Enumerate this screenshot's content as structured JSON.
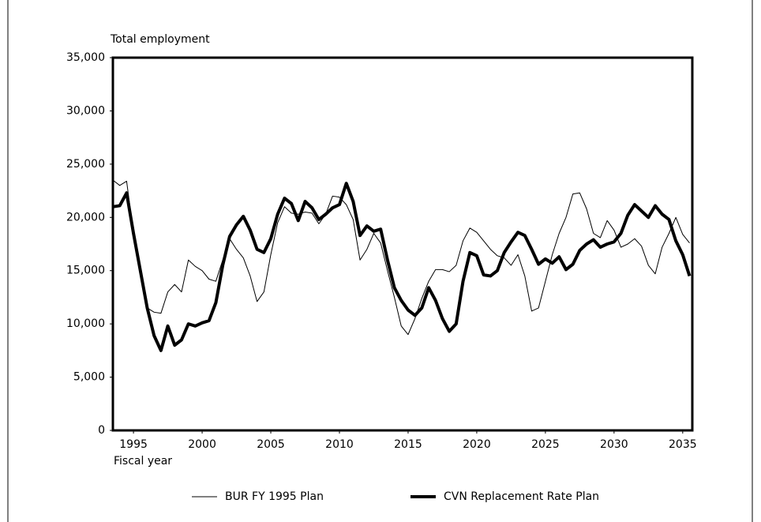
{
  "chart_data": {
    "type": "line",
    "y_label": "Total employment",
    "x_label": "Fiscal year",
    "x": [
      1993.5,
      1994,
      1994.5,
      1995,
      1995.5,
      1996,
      1996.5,
      1997,
      1997.5,
      1998,
      1998.5,
      1999,
      1999.5,
      2000,
      2000.5,
      2001,
      2001.5,
      2002,
      2002.5,
      2003,
      2003.5,
      2004,
      2004.5,
      2005,
      2005.5,
      2006,
      2006.5,
      2007,
      2007.5,
      2008,
      2008.5,
      2009,
      2009.5,
      2010,
      2010.5,
      2011,
      2011.5,
      2012,
      2012.5,
      2013,
      2013.5,
      2014,
      2014.5,
      2015,
      2015.5,
      2016,
      2016.5,
      2017,
      2017.5,
      2018,
      2018.5,
      2019,
      2019.5,
      2020,
      2020.5,
      2021,
      2021.5,
      2022,
      2022.5,
      2023,
      2023.5,
      2024,
      2024.5,
      2025,
      2025.5,
      2026,
      2026.5,
      2027,
      2027.5,
      2028,
      2028.5,
      2029,
      2029.5,
      2030,
      2030.5,
      2031,
      2031.5,
      2032,
      2032.5,
      2033,
      2033.5,
      2034,
      2034.5,
      2035,
      2035.5
    ],
    "series": [
      {
        "name": "BUR FY 1995 Plan",
        "color": "#000000",
        "linewidth": 1,
        "values": [
          23500,
          23000,
          23400,
          18500,
          15500,
          11500,
          11100,
          11000,
          13000,
          13700,
          13000,
          16000,
          15400,
          15000,
          14200,
          14000,
          16000,
          18000,
          17000,
          16200,
          14500,
          12100,
          13000,
          16500,
          19500,
          21000,
          20400,
          20300,
          20500,
          20400,
          19400,
          20300,
          22000,
          21900,
          21200,
          19800,
          16000,
          17000,
          18500,
          17600,
          15000,
          12500,
          9800,
          9000,
          10500,
          12400,
          14000,
          15100,
          15100,
          14900,
          15500,
          17800,
          19000,
          18600,
          17800,
          17000,
          16400,
          16200,
          15500,
          16500,
          14500,
          11200,
          11500,
          14000,
          16500,
          18500,
          20000,
          22200,
          22300,
          20800,
          18500,
          18100,
          19700,
          18800,
          17200,
          17500,
          18000,
          17300,
          15500,
          14700,
          17200,
          18500,
          20000,
          18400,
          17600
        ]
      },
      {
        "name": "CVN Replacement Rate Plan",
        "color": "#000000",
        "linewidth": 4,
        "values": [
          21000,
          21100,
          22300,
          18500,
          15000,
          11500,
          8900,
          7500,
          9800,
          8000,
          8500,
          10000,
          9800,
          10100,
          10300,
          12000,
          15500,
          18200,
          19300,
          20100,
          18800,
          17000,
          16700,
          18000,
          20300,
          21800,
          21300,
          19700,
          21500,
          20900,
          19800,
          20300,
          20900,
          21200,
          23200,
          21500,
          18300,
          19200,
          18700,
          18900,
          16000,
          13400,
          12200,
          11300,
          10800,
          11500,
          13400,
          12200,
          10500,
          9300,
          10000,
          14000,
          16700,
          16400,
          14600,
          14500,
          15000,
          16700,
          17700,
          18600,
          18300,
          17000,
          15600,
          16100,
          15700,
          16300,
          15100,
          15600,
          16900,
          17500,
          17900,
          17200,
          17500,
          17700,
          18500,
          20200,
          21200,
          20600,
          20000,
          21100,
          20300,
          19800,
          17800,
          16500,
          14500
        ]
      }
    ],
    "xlim": [
      1993.5,
      2035.7
    ],
    "xticks": [
      1995,
      2000,
      2005,
      2010,
      2015,
      2020,
      2025,
      2030,
      2035
    ],
    "ylim": [
      0,
      35000
    ],
    "yticks": [
      0,
      {
        "value": 5000,
        "label": "5,000"
      },
      {
        "value": 10000,
        "label": "10,000"
      },
      {
        "value": 15000,
        "label": "15,000"
      },
      {
        "value": 20000,
        "label": "20,000"
      },
      {
        "value": 25000,
        "label": "25,000"
      },
      {
        "value": 30000,
        "label": "30,000"
      },
      {
        "value": 35000,
        "label": "35,000"
      }
    ],
    "grid": false,
    "legend": "bottom"
  }
}
